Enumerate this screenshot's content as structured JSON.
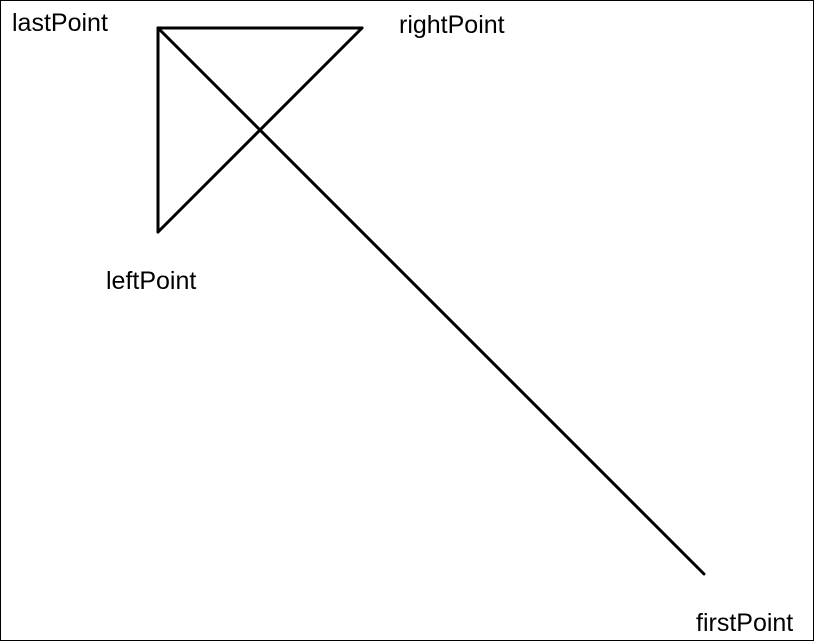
{
  "diagram": {
    "labels": {
      "last_point": "lastPoint",
      "right_point": "rightPoint",
      "left_point": "leftPoint",
      "first_point": "firstPoint"
    },
    "colors": {
      "line": "#000000",
      "background": "#ffffff"
    }
  }
}
